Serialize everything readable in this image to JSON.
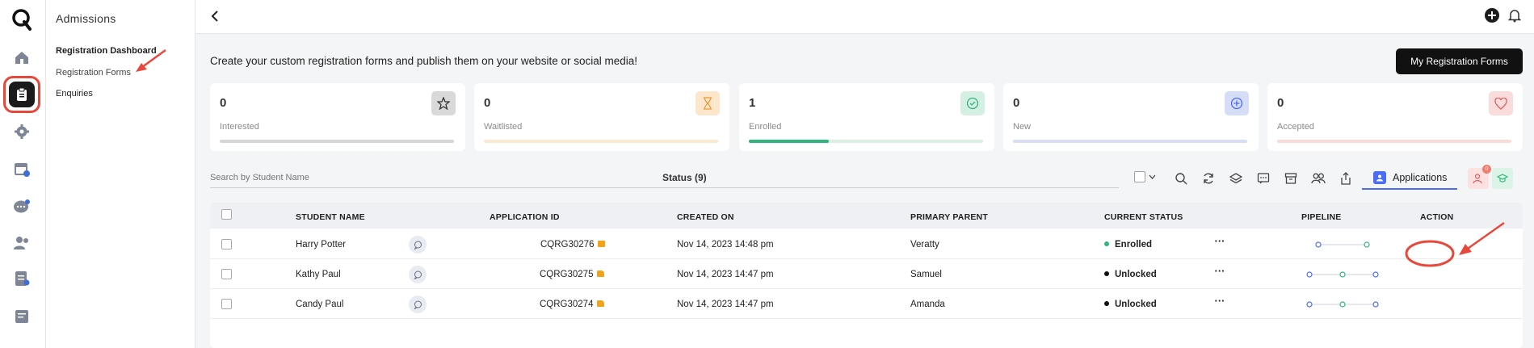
{
  "sidebar_nav": {
    "title": "Admissions",
    "items": [
      {
        "label": "Registration Dashboard"
      },
      {
        "label": "Registration Forms"
      },
      {
        "label": "Enquiries"
      }
    ]
  },
  "header": {
    "headline": "Create your custom registration forms and publish them on your website or social media!",
    "primary_button": "My Registration Forms"
  },
  "stats": [
    {
      "value": "0",
      "label": "Interested",
      "accent": "#bdbdbd",
      "icon": "star-icon",
      "progress": 0
    },
    {
      "value": "0",
      "label": "Waitlisted",
      "accent": "#f6c98a",
      "icon": "hourglass-icon",
      "progress": 0
    },
    {
      "value": "1",
      "label": "Enrolled",
      "accent": "#2fb67c",
      "icon": "check-circle-icon",
      "progress": 0.34
    },
    {
      "value": "0",
      "label": "New",
      "accent": "#6f86e6",
      "icon": "plus-circle-icon",
      "progress": 0
    },
    {
      "value": "0",
      "label": "Accepted",
      "accent": "#f08b8b",
      "icon": "heart-icon",
      "progress": 0
    }
  ],
  "filters": {
    "search_placeholder": "Search by Student Name",
    "status_label": "Status (9)",
    "tab_label": "Applications",
    "notification_count": "0"
  },
  "table": {
    "columns": [
      "STUDENT NAME",
      "APPLICATION ID",
      "CREATED ON",
      "PRIMARY PARENT",
      "CURRENT STATUS",
      "PIPELINE",
      "ACTION"
    ],
    "rows": [
      {
        "student": "Harry Potter",
        "app_id": "CQRG30276",
        "created": "Nov 14, 2023 14:48 pm",
        "parent": "Veratty",
        "status": "Enrolled",
        "status_color": "#2fb67c",
        "lock": "locked",
        "action": "···"
      },
      {
        "student": "Kathy Paul",
        "app_id": "CQRG30275",
        "created": "Nov 14, 2023 14:47 pm",
        "parent": "Samuel",
        "status": "Unlocked",
        "status_color": "#111111",
        "lock": "unlocked",
        "action": "···"
      },
      {
        "student": "Candy Paul",
        "app_id": "CQRG30274",
        "created": "Nov 14, 2023 14:47 pm",
        "parent": "Amanda",
        "status": "Unlocked",
        "status_color": "#111111",
        "lock": "unlocked",
        "action": "···"
      }
    ]
  },
  "colors": {
    "accent_blue": "#4a6cf7",
    "annotation_red": "#e8473b"
  }
}
